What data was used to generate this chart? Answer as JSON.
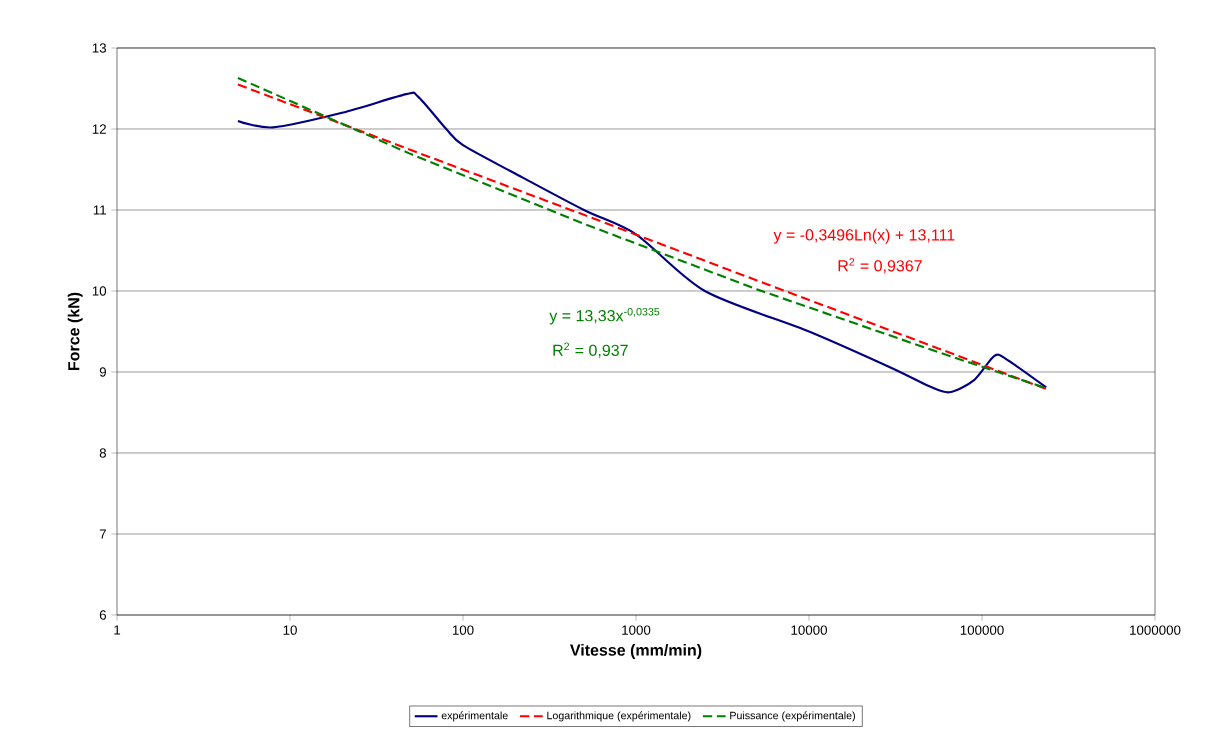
{
  "chart_data": {
    "type": "line",
    "xlabel": "Vitesse (mm/min)",
    "ylabel": "Force (kN)",
    "log": "x",
    "grid": "y",
    "legend": "bottom",
    "marker": "none",
    "xlim": [
      1,
      1000000
    ],
    "xticks": [
      1,
      10,
      100,
      1000,
      10000,
      100000,
      1000000
    ],
    "ylim": [
      6,
      13
    ],
    "yticks": [
      6,
      7,
      8,
      9,
      10,
      11,
      12,
      13
    ],
    "series": [
      {
        "name": "expérimentale",
        "color": "#000080",
        "line_style": "solid",
        "x": [
          5,
          8,
          20,
          47,
          55,
          80,
          100,
          200,
          500,
          1000,
          2500,
          10000,
          30000,
          50000,
          65000,
          90000,
          118000,
          140000,
          235000
        ],
        "values": [
          12.1,
          12.02,
          12.2,
          12.43,
          12.4,
          12.0,
          11.8,
          11.45,
          11.0,
          10.7,
          10.0,
          9.5,
          9.05,
          8.82,
          8.75,
          8.9,
          9.2,
          9.15,
          8.81
        ]
      },
      {
        "name": "Logarithmique (expérimentale)",
        "color": "#ff0000",
        "line_style": "dashed",
        "x": [
          5,
          50,
          500,
          5000,
          50000,
          235000
        ],
        "values": [
          12.55,
          11.74,
          10.94,
          10.13,
          9.33,
          8.79
        ]
      },
      {
        "name": "Puissance (expérimentale)",
        "color": "#008000",
        "line_style": "dashed",
        "x": [
          5,
          50,
          500,
          5000,
          50000,
          235000
        ],
        "values": [
          12.63,
          11.69,
          10.83,
          10.02,
          9.28,
          8.8
        ]
      }
    ],
    "annotations": [
      "y = -0,3496Ln(x) + 13,111",
      "R$^{2}$ = 0,9367",
      "y = 13,33x$^{-0,0335}$",
      "R$^{2}$ = 0,937"
    ]
  }
}
